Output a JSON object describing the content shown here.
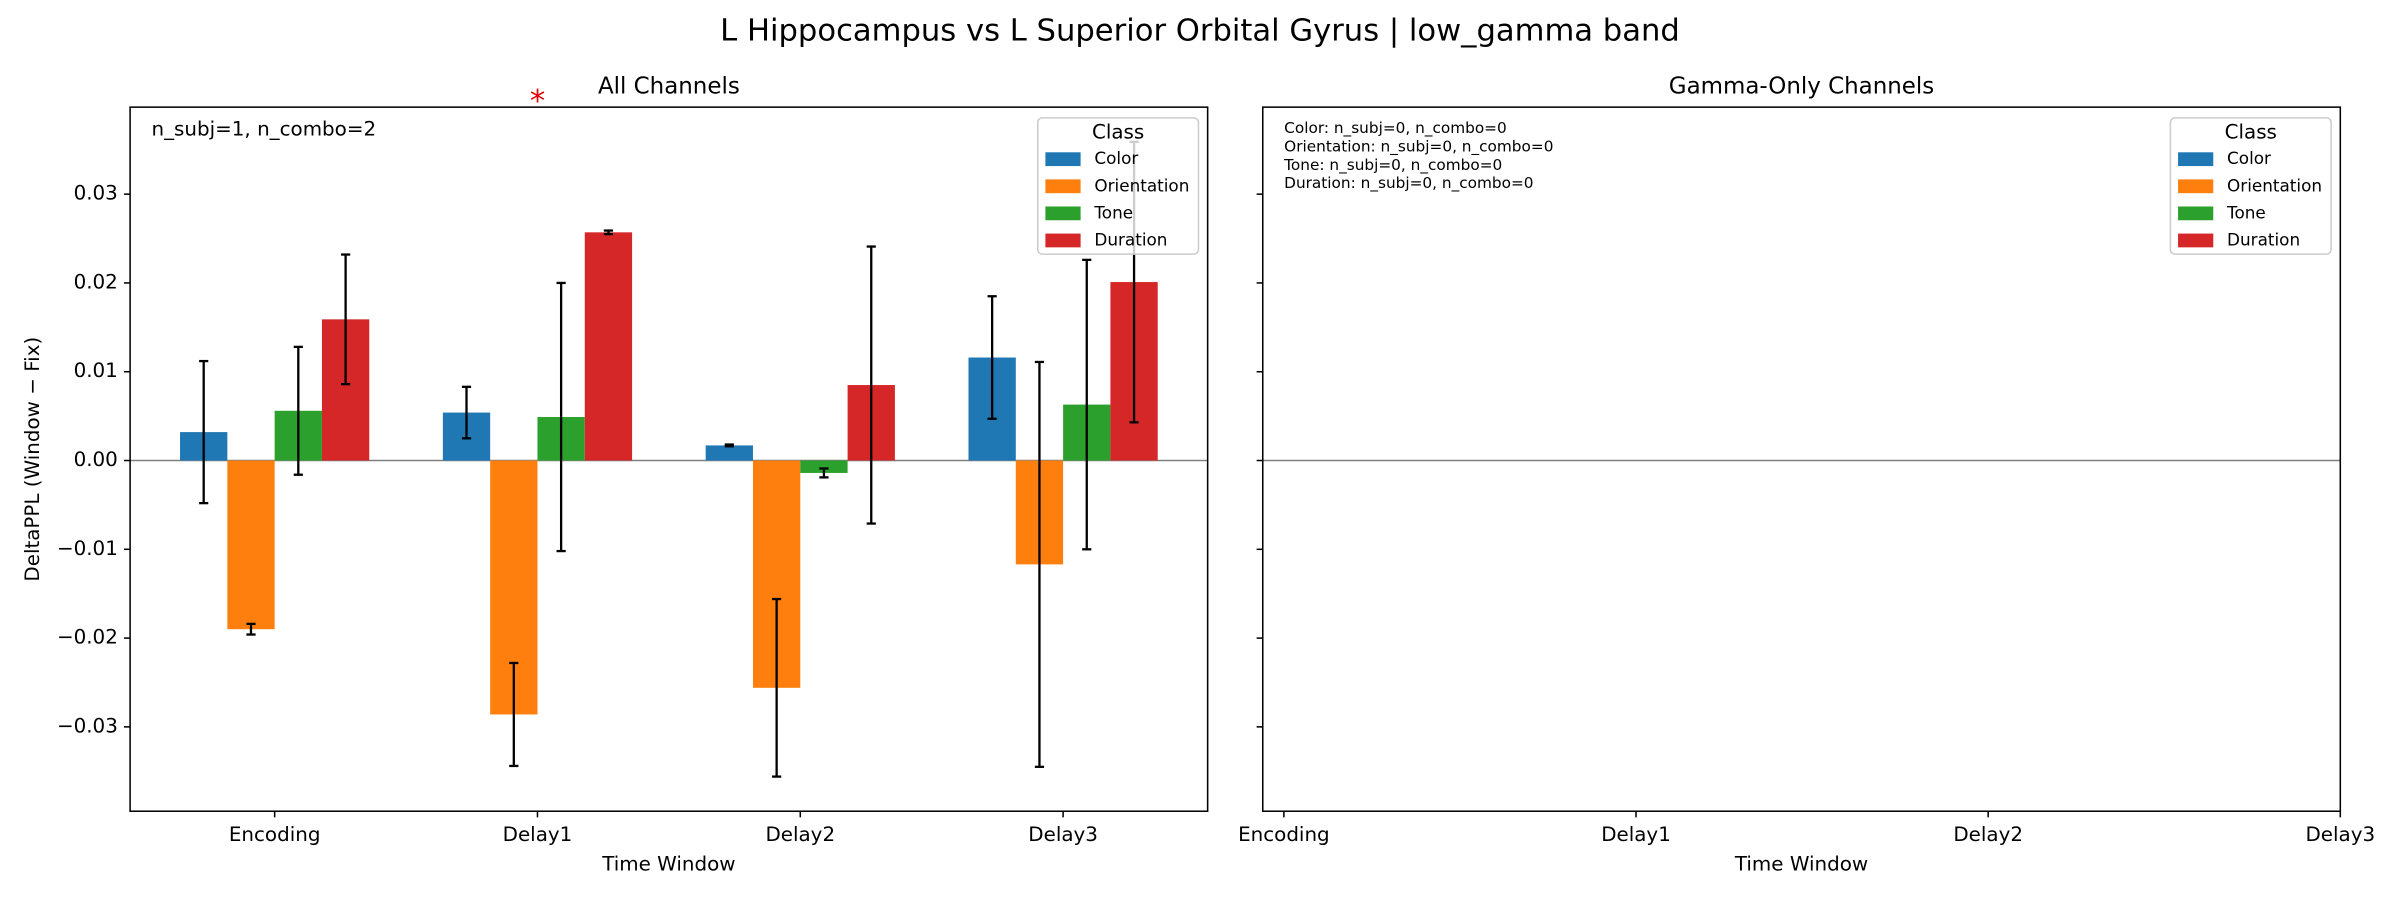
{
  "chart_data": [
    {
      "type": "bar",
      "suptitle": "L Hippocampus vs L Superior Orbital Gyrus  |  low_gamma band",
      "title": "All Channels",
      "x_label": "Time Window",
      "y_label": "DeltaPPL (Window − Fix)",
      "annotation": "n_subj=1, n_combo=2",
      "significance": "*",
      "legend_title": "Class",
      "legend": "upper right",
      "categories": [
        "Encoding",
        "Delay1",
        "Delay2",
        "Delay3"
      ],
      "series": [
        {
          "name": "Color",
          "color": "#1f77b4",
          "values": [
            0.0032,
            0.0054,
            0.0017,
            0.0116
          ],
          "errors": [
            0.008,
            0.0029,
            0.0001,
            0.0069
          ]
        },
        {
          "name": "Orientation",
          "color": "#ff7f0e",
          "values": [
            -0.019,
            -0.0286,
            -0.0256,
            -0.0117
          ],
          "errors": [
            0.0006,
            0.0058,
            0.01,
            0.0228
          ]
        },
        {
          "name": "Tone",
          "color": "#2ca02c",
          "values": [
            0.0056,
            0.0049,
            -0.0014,
            0.0063
          ],
          "errors": [
            0.0072,
            0.0151,
            0.0005,
            0.0163
          ]
        },
        {
          "name": "Duration",
          "color": "#d62728",
          "values": [
            0.0159,
            0.0257,
            0.0085,
            0.0201
          ],
          "errors": [
            0.0073,
            0.0002,
            0.0156,
            0.0158
          ]
        }
      ],
      "ylim": [
        -0.0395,
        0.0398
      ],
      "yticks": [
        {
          "value": -0.03,
          "label": "−0.03"
        },
        {
          "value": -0.02,
          "label": "−0.02"
        },
        {
          "value": -0.01,
          "label": "−0.01"
        },
        {
          "value": 0,
          "label": "0.00"
        },
        {
          "value": 0.01,
          "label": "0.01"
        },
        {
          "value": 0.02,
          "label": "0.02"
        },
        {
          "value": 0.03,
          "label": "0.03"
        }
      ]
    },
    {
      "type": "bar",
      "title": "Gamma-Only Channels",
      "x_label": "Time Window",
      "annotations": [
        "Color: n_subj=0, n_combo=0",
        "Orientation: n_subj=0, n_combo=0",
        "Tone: n_subj=0, n_combo=0",
        "Duration: n_subj=0, n_combo=0"
      ],
      "legend_title": "Class",
      "legend": "upper right",
      "sharey": true,
      "categories": [
        "Encoding",
        "Delay1",
        "Delay2",
        "Delay3"
      ],
      "xlim": [
        -0.06,
        3
      ],
      "series": [
        {
          "name": "Color",
          "color": "#1f77b4"
        },
        {
          "name": "Orientation",
          "color": "#ff7f0e"
        },
        {
          "name": "Tone",
          "color": "#2ca02c"
        },
        {
          "name": "Duration",
          "color": "#d62728"
        }
      ]
    }
  ]
}
